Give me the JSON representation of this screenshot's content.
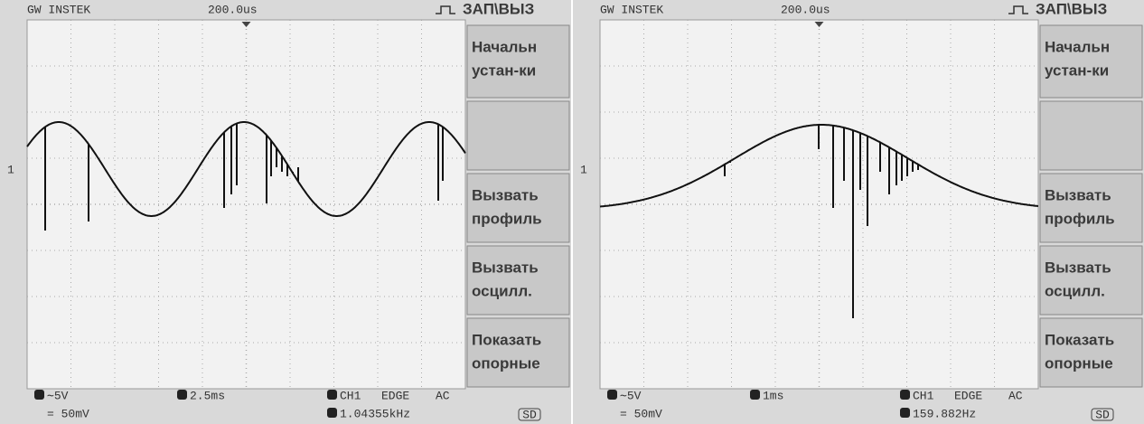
{
  "screens": [
    {
      "header": {
        "brand": "GW INSTEK",
        "timebase": "200.0us",
        "menu_title": "ЗАП\\ВЫЗ"
      },
      "channel_marker": "1",
      "menu": [
        [
          "Начальн",
          "устан-ки"
        ],
        [
          "Вызвать",
          "профиль"
        ],
        [
          "Вызвать",
          "осцилл."
        ],
        [
          "Показать",
          "опорные"
        ]
      ],
      "footer": {
        "ch_scale": "∼5V",
        "probe_scale": "= 50mV",
        "time_scale": "2.5ms",
        "source": "CH1",
        "trigger": "EDGE",
        "coupling": "AC",
        "frequency": "1.04355kHz",
        "storage": "SD"
      }
    },
    {
      "header": {
        "brand": "GW INSTEK",
        "timebase": "200.0us",
        "menu_title": "ЗАП\\ВЫЗ"
      },
      "channel_marker": "1",
      "menu": [
        [
          "Начальн",
          "устан-ки"
        ],
        [
          "Вызвать",
          "профиль"
        ],
        [
          "Вызвать",
          "осцилл."
        ],
        [
          "Показать",
          "опорные"
        ]
      ],
      "footer": {
        "ch_scale": "∼5V",
        "probe_scale": "= 50mV",
        "time_scale": "1ms",
        "source": "CH1",
        "trigger": "EDGE",
        "coupling": "AC",
        "frequency": "159.882Hz",
        "storage": "SD"
      }
    }
  ]
}
